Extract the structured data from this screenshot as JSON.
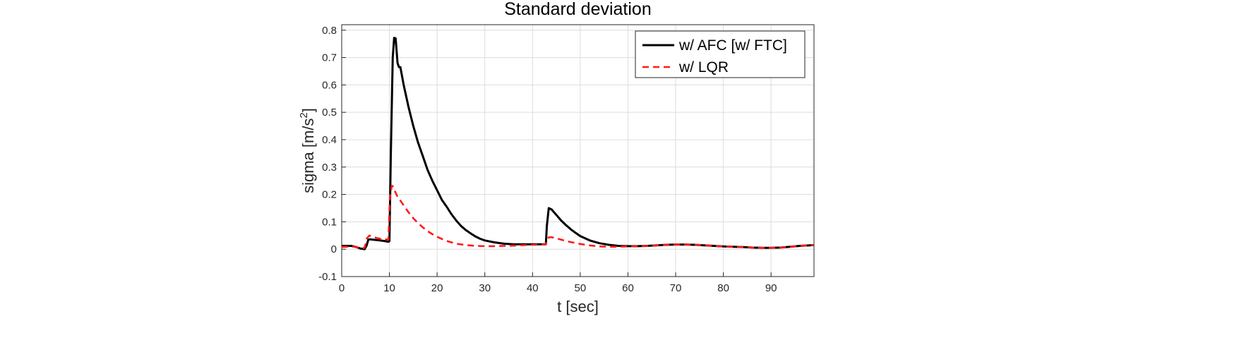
{
  "chart_data": {
    "type": "line",
    "title": "Standard deviation",
    "xlabel": "t [sec]",
    "ylabel": "sigma [m/s",
    "ylabel_superscript": "2",
    "ylabel_suffix": "]",
    "xlim": [
      0,
      99
    ],
    "ylim": [
      -0.1,
      0.82
    ],
    "xticks": [
      0,
      10,
      20,
      30,
      40,
      50,
      60,
      70,
      80,
      90
    ],
    "yticks": [
      -0.1,
      0,
      0.1,
      0.2,
      0.3,
      0.4,
      0.5,
      0.6,
      0.7,
      0.8
    ],
    "xtick_labels": [
      "0",
      "10",
      "20",
      "30",
      "40",
      "50",
      "60",
      "70",
      "80",
      "90"
    ],
    "ytick_labels": [
      "-0.1",
      "0",
      "0.1",
      "0.2",
      "0.3",
      "0.4",
      "0.5",
      "0.6",
      "0.7",
      "0.8"
    ],
    "grid": true,
    "legend_position": "top-right",
    "series": [
      {
        "name": "w/ AFC [w/ FTC]",
        "color": "#000000",
        "dash": "solid",
        "x": [
          0,
          2,
          3,
          4,
          4.8,
          5.2,
          5.6,
          6,
          7,
          8,
          9,
          9.8,
          10,
          10.3,
          10.7,
          11,
          11.3,
          11.7,
          12,
          12.3,
          13,
          14,
          15,
          16,
          17,
          18,
          19,
          20,
          21,
          22,
          23,
          24,
          25,
          26,
          27,
          28,
          29,
          30,
          32,
          34,
          36,
          38,
          40,
          42,
          42.8,
          43,
          43.4,
          44,
          45,
          46,
          47,
          48,
          49,
          50,
          52,
          54,
          56,
          58,
          60,
          62,
          64,
          66,
          68,
          70,
          72,
          74,
          76,
          78,
          80,
          82,
          84,
          86,
          88,
          90,
          92,
          94,
          96,
          99
        ],
        "y": [
          0.012,
          0.012,
          0.008,
          0.002,
          0.0,
          0.012,
          0.035,
          0.036,
          0.034,
          0.032,
          0.03,
          0.027,
          0.03,
          0.35,
          0.7,
          0.772,
          0.77,
          0.68,
          0.665,
          0.665,
          0.6,
          0.52,
          0.45,
          0.39,
          0.34,
          0.29,
          0.25,
          0.215,
          0.18,
          0.155,
          0.128,
          0.105,
          0.085,
          0.07,
          0.058,
          0.047,
          0.038,
          0.032,
          0.025,
          0.02,
          0.018,
          0.018,
          0.018,
          0.018,
          0.018,
          0.085,
          0.15,
          0.145,
          0.125,
          0.105,
          0.088,
          0.073,
          0.06,
          0.048,
          0.032,
          0.022,
          0.016,
          0.012,
          0.011,
          0.011,
          0.012,
          0.014,
          0.016,
          0.017,
          0.017,
          0.016,
          0.014,
          0.012,
          0.01,
          0.009,
          0.008,
          0.006,
          0.005,
          0.005,
          0.006,
          0.009,
          0.012,
          0.015
        ]
      },
      {
        "name": "w/ LQR",
        "color": "#ff1a1a",
        "dash": "dashed",
        "x": [
          0,
          2,
          3,
          4,
          4.8,
          5.3,
          5.8,
          6.5,
          7.5,
          8.5,
          9.8,
          10.1,
          10.5,
          10.8,
          11.2,
          11.6,
          12,
          13,
          14,
          15,
          16,
          17,
          18,
          19,
          20,
          22,
          24,
          26,
          28,
          30,
          32,
          34,
          36,
          38,
          40,
          42,
          42.8,
          43,
          43.4,
          44,
          45,
          46,
          47,
          48,
          50,
          52,
          54,
          56,
          58,
          60,
          62,
          64,
          66,
          68,
          70,
          72,
          74,
          76,
          78,
          80,
          82,
          84,
          86,
          88,
          90,
          92,
          94,
          96,
          99
        ],
        "y": [
          0.008,
          0.01,
          0.008,
          0.004,
          0.005,
          0.04,
          0.05,
          0.046,
          0.04,
          0.037,
          0.035,
          0.19,
          0.232,
          0.228,
          0.21,
          0.195,
          0.185,
          0.16,
          0.135,
          0.113,
          0.095,
          0.08,
          0.066,
          0.055,
          0.045,
          0.03,
          0.02,
          0.015,
          0.012,
          0.011,
          0.011,
          0.012,
          0.013,
          0.015,
          0.016,
          0.017,
          0.018,
          0.032,
          0.043,
          0.044,
          0.04,
          0.035,
          0.03,
          0.026,
          0.019,
          0.014,
          0.01,
          0.009,
          0.009,
          0.01,
          0.011,
          0.012,
          0.014,
          0.016,
          0.017,
          0.017,
          0.016,
          0.014,
          0.012,
          0.01,
          0.009,
          0.008,
          0.006,
          0.005,
          0.005,
          0.006,
          0.009,
          0.012,
          0.015
        ]
      }
    ]
  }
}
